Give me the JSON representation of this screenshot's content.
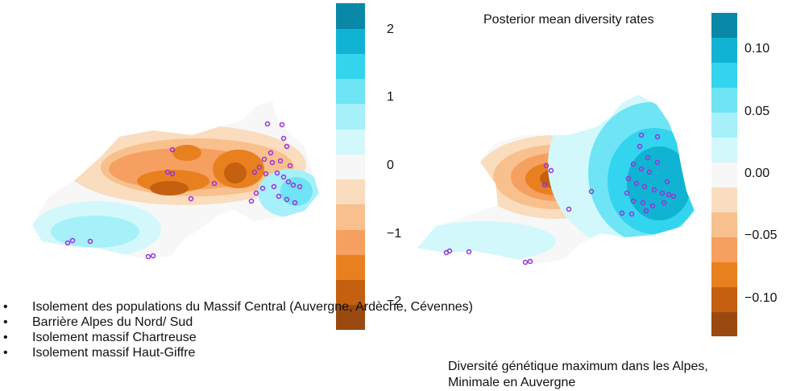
{
  "colors": {
    "scale": [
      "#9a4a10",
      "#c4600f",
      "#e8801f",
      "#f5a060",
      "#f8c08c",
      "#fadcbe",
      "#f7f7f7",
      "#d2f8fc",
      "#a6f0fa",
      "#6ee4f4",
      "#33d4ee",
      "#10b4d2",
      "#0a88a8"
    ],
    "points": "#9b30d9"
  },
  "bullets": [
    "Isolement des populations du Massif Central (Auvergne, Ardèche, Cévennes)",
    "Barrière Alpes du Nord/ Sud",
    "Isolement massif Chartreuse",
    "Isolement massif Haut-Giffre"
  ],
  "caption_line1": "Diversité génétique maximum dans les Alpes,",
  "caption_line2": "Minimale en Auvergne",
  "chart_data": [
    {
      "type": "heatmap",
      "title": "",
      "colorbar": {
        "min": -2.4,
        "max": 2.4,
        "ticks": [
          2,
          1,
          0,
          -1,
          -2
        ],
        "tick_labels": [
          "2",
          "1",
          "0",
          "−1",
          "−2"
        ]
      }
    },
    {
      "type": "heatmap",
      "title": "Posterior mean diversity rates",
      "colorbar": {
        "min": -0.13,
        "max": 0.13,
        "ticks": [
          0.1,
          0.05,
          0.0,
          -0.05,
          -0.1
        ],
        "tick_labels": [
          "0.10",
          "0.05",
          "0.00",
          "−0.05",
          "−0.10"
        ]
      }
    }
  ]
}
